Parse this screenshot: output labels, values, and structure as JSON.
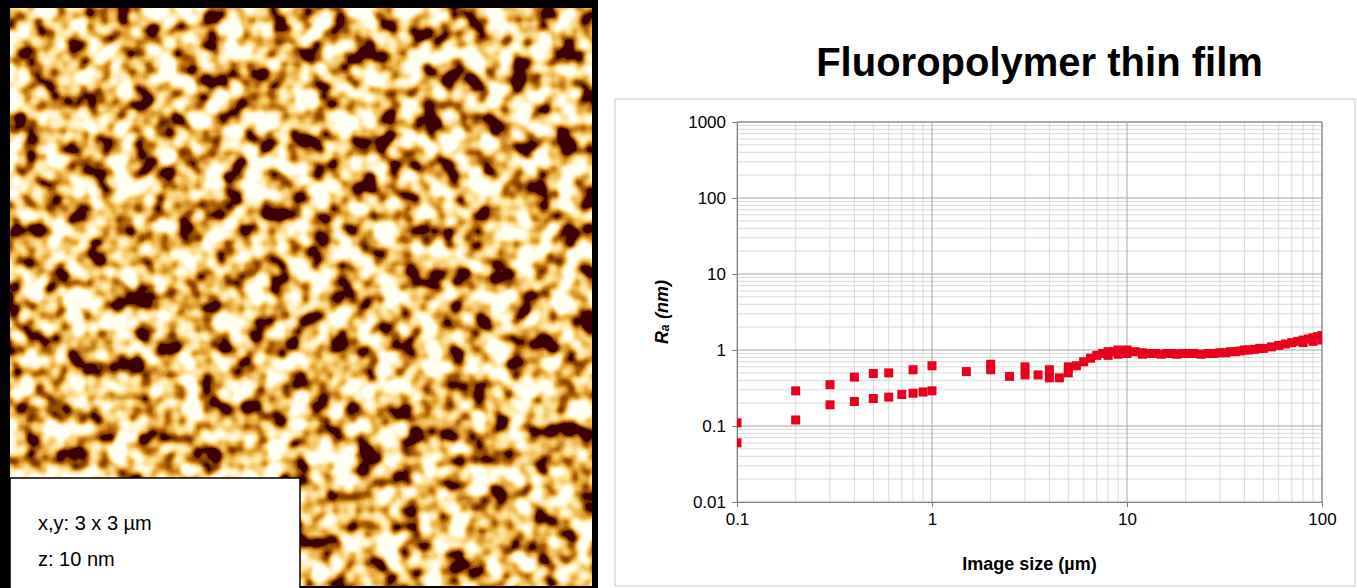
{
  "image_panel": {
    "labels": [
      "x,y: 3 x 3 µm",
      "z: 10 nm"
    ]
  },
  "chart_data": {
    "type": "scatter",
    "title": "Fluoropolymer thin film",
    "x_label": "Image size (µm)",
    "y_label": "Rₐ (nm)",
    "x": [
      0.1,
      0.1,
      0.2,
      0.2,
      0.3,
      0.3,
      0.4,
      0.4,
      0.5,
      0.5,
      0.6,
      0.6,
      0.7,
      0.8,
      0.8,
      0.9,
      1,
      1,
      1.5,
      2,
      2,
      2.5,
      3,
      3,
      3.5,
      4,
      4,
      4.5,
      5,
      5,
      5.5,
      6,
      6.5,
      7,
      7.5,
      8,
      8,
      8.5,
      9,
      9,
      9.5,
      10,
      10,
      11,
      12,
      12,
      13,
      14,
      15,
      16,
      17,
      18,
      19,
      20,
      22,
      24,
      26,
      28,
      30,
      32,
      34,
      36,
      38,
      40,
      42,
      45,
      48,
      50,
      55,
      60,
      65,
      70,
      75,
      80,
      80,
      85,
      90,
      90,
      95,
      100,
      100
    ],
    "values": [
      0.11,
      0.06,
      0.29,
      0.12,
      0.35,
      0.19,
      0.44,
      0.21,
      0.49,
      0.23,
      0.5,
      0.24,
      0.26,
      0.55,
      0.27,
      0.28,
      0.62,
      0.29,
      0.52,
      0.65,
      0.55,
      0.45,
      0.6,
      0.47,
      0.47,
      0.55,
      0.43,
      0.43,
      0.5,
      0.6,
      0.62,
      0.7,
      0.78,
      0.85,
      0.9,
      0.95,
      0.85,
      0.95,
      1.0,
      0.88,
      0.95,
      1.0,
      0.9,
      0.95,
      0.88,
      0.92,
      0.9,
      0.9,
      0.88,
      0.9,
      0.9,
      0.88,
      0.9,
      0.9,
      0.9,
      0.88,
      0.9,
      0.9,
      0.92,
      0.92,
      0.95,
      0.95,
      0.97,
      1.0,
      1.0,
      1.02,
      1.05,
      1.05,
      1.1,
      1.15,
      1.2,
      1.25,
      1.3,
      1.35,
      1.25,
      1.4,
      1.45,
      1.3,
      1.5,
      1.55,
      1.35
    ],
    "color": "#e8001c",
    "marker": "square",
    "log": true,
    "grid": true,
    "xlim": [
      0.1,
      100
    ],
    "xticks": [
      0.1,
      1,
      10,
      100
    ],
    "ylim": [
      0.01,
      1000
    ],
    "yticks": [
      0.01,
      0.1,
      1,
      10,
      100,
      1000
    ]
  }
}
